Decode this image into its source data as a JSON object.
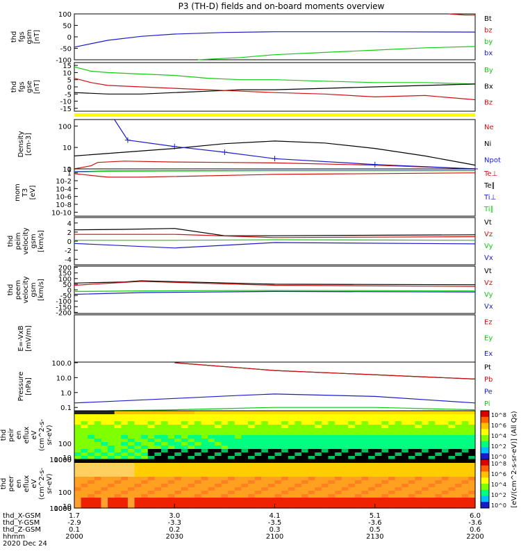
{
  "title": "P3 (TH-D) fields and on-board moments overview",
  "colors": {
    "black": "#000000",
    "red": "#cc1111",
    "green": "#11cc11",
    "blue": "#1a1acc",
    "yellow": "#ffff00"
  },
  "chart_data": [
    {
      "id": "fgs_gsm",
      "type": "line",
      "ylabel": [
        "thd",
        "fgs",
        "gsm",
        "[nT]"
      ],
      "ylim": [
        -100,
        100
      ],
      "yticks": [
        "100",
        "50",
        "0",
        "-50",
        "-100"
      ],
      "legend": [
        {
          "label": "Bt",
          "color": "black"
        },
        {
          "label": "bz",
          "color": "red"
        },
        {
          "label": "by",
          "color": "green"
        },
        {
          "label": "bx",
          "color": "blue"
        }
      ],
      "series": [
        {
          "name": "bx",
          "color": "blue",
          "x": [
            2000,
            2005,
            2010,
            2020,
            2030,
            2045,
            2100,
            2130,
            2200
          ],
          "y": [
            -45,
            -30,
            -15,
            2,
            12,
            19,
            22,
            22,
            21
          ]
        },
        {
          "name": "by",
          "color": "green",
          "x": [
            2037,
            2050,
            2100,
            2115,
            2130,
            2145,
            2200
          ],
          "y": [
            -100,
            -90,
            -78,
            -68,
            -58,
            -48,
            -42
          ]
        },
        {
          "name": "bz",
          "color": "red",
          "x": [
            2152,
            2157,
            2200
          ],
          "y": [
            100,
            95,
            95
          ]
        }
      ]
    },
    {
      "id": "fgs_gse",
      "type": "line",
      "ylabel": [
        "thd",
        "fgs",
        "gse",
        "[nT]"
      ],
      "ylim": [
        -17,
        17
      ],
      "yticks": [
        "15",
        "10",
        "5",
        "0",
        "-5",
        "-10",
        "-15"
      ],
      "legend": [
        {
          "label": "By",
          "color": "green"
        },
        {
          "label": "Bx",
          "color": "black"
        },
        {
          "label": "Bz",
          "color": "red"
        }
      ],
      "series": [
        {
          "name": "By",
          "color": "green",
          "x": [
            2000,
            2005,
            2010,
            2020,
            2030,
            2040,
            2050,
            2100,
            2115,
            2130,
            2145,
            2200
          ],
          "y": [
            14,
            11,
            10,
            9,
            8,
            6,
            5,
            5,
            4,
            3,
            3,
            2
          ]
        },
        {
          "name": "Bx",
          "color": "black",
          "x": [
            2000,
            2010,
            2020,
            2030,
            2040,
            2050,
            2100,
            2115,
            2130,
            2145,
            2200
          ],
          "y": [
            -4,
            -5,
            -5,
            -4,
            -3,
            -2,
            -2,
            -1,
            0,
            1,
            2
          ]
        },
        {
          "name": "Bz",
          "color": "red",
          "x": [
            2000,
            2005,
            2010,
            2020,
            2030,
            2040,
            2050,
            2100,
            2115,
            2130,
            2145,
            2200
          ],
          "y": [
            6,
            3,
            1,
            0,
            -1,
            -2,
            -3,
            -4,
            -5,
            -7,
            -6,
            -9
          ]
        }
      ]
    },
    {
      "id": "density",
      "type": "line",
      "yscale": "log",
      "ylabel": [
        "Density",
        "[cm-3]"
      ],
      "ylim": [
        1,
        200
      ],
      "yticks": [
        "100",
        "10",
        "1"
      ],
      "legend": [
        {
          "label": "Ne",
          "color": "red"
        },
        {
          "label": "Ni",
          "color": "black"
        },
        {
          "label": "Npot",
          "color": "blue"
        }
      ],
      "series": [
        {
          "name": "Ni",
          "color": "black",
          "x": [
            2000,
            2015,
            2030,
            2045,
            2100,
            2115,
            2130,
            2145,
            2200
          ],
          "y": [
            4,
            6,
            9,
            15,
            20,
            16,
            9,
            4,
            1.5
          ]
        },
        {
          "name": "Ne",
          "color": "red",
          "x": [
            2000,
            2005,
            2007,
            2015,
            2030,
            2045,
            2100,
            2130,
            2200
          ],
          "y": [
            1,
            1.4,
            2,
            2.3,
            2.1,
            2,
            1.9,
            1.5,
            1
          ]
        },
        {
          "name": "Npot",
          "color": "blue",
          "x": [
            2012,
            2016,
            2030,
            2045,
            2100,
            2130,
            2200
          ],
          "y": [
            200,
            22,
            11,
            6,
            3,
            1.6,
            1
          ]
        }
      ]
    },
    {
      "id": "temperature",
      "type": "line",
      "yscale": "log",
      "ylabel": [
        "mom",
        "T3",
        "[eV]"
      ],
      "ylim": [
        1e-11,
        10
      ],
      "yticks": [
        "10",
        "1",
        "10-2",
        "10-4",
        "10-6",
        "10-8",
        "10-10"
      ],
      "legend": [
        {
          "label": "Te⊥",
          "color": "red"
        },
        {
          "label": "Te∥",
          "color": "black"
        },
        {
          "label": "Ti⊥",
          "color": "blue"
        },
        {
          "label": "Ti∥",
          "color": "green"
        }
      ],
      "series": [
        {
          "name": "Ti⊥",
          "color": "blue",
          "x": [
            2000,
            2010,
            2100,
            2200
          ],
          "y": [
            2,
            3,
            4,
            4
          ]
        },
        {
          "name": "Ti∥",
          "color": "green",
          "x": [
            2000,
            2010,
            2100,
            2200
          ],
          "y": [
            1.5,
            2.5,
            3.5,
            3.5
          ]
        },
        {
          "name": "Te⊥",
          "color": "red",
          "x": [
            2000,
            2010,
            2020,
            2100,
            2200
          ],
          "y": [
            0.6,
            0.08,
            0.08,
            0.4,
            1
          ]
        }
      ]
    },
    {
      "id": "peim_velocity",
      "type": "line",
      "ylabel": [
        "thd",
        "peim",
        "velocity",
        "gsm",
        "[km/s]"
      ],
      "ylim": [
        -5.2,
        5.2
      ],
      "yticks": [
        "4",
        "2",
        "0",
        "-2",
        "-4"
      ],
      "legend": [
        {
          "label": "Vt",
          "color": "black"
        },
        {
          "label": "Vz",
          "color": "red"
        },
        {
          "label": "Vy",
          "color": "green"
        },
        {
          "label": "Vx",
          "color": "blue"
        }
      ],
      "series": [
        {
          "name": "Vt",
          "color": "black",
          "x": [
            2000,
            2015,
            2030,
            2045,
            2100,
            2200
          ],
          "y": [
            2.5,
            2.6,
            2.8,
            1.2,
            1.2,
            1.4
          ]
        },
        {
          "name": "Vz",
          "color": "red",
          "x": [
            2000,
            2030,
            2100,
            2200
          ],
          "y": [
            1.5,
            1.5,
            0.8,
            1
          ]
        },
        {
          "name": "Vy",
          "color": "green",
          "x": [
            2000,
            2030,
            2100,
            2200
          ],
          "y": [
            0.2,
            0.2,
            0.3,
            0.2
          ]
        },
        {
          "name": "Vx",
          "color": "blue",
          "x": [
            2000,
            2030,
            2100,
            2200
          ],
          "y": [
            -0.5,
            -1.5,
            -0.3,
            -0.6
          ]
        }
      ]
    },
    {
      "id": "peem_velocity",
      "type": "line",
      "ylabel": [
        "thd",
        "peem",
        "velocity",
        "gsm",
        "[km/s]"
      ],
      "ylim": [
        -210,
        210
      ],
      "yticks": [
        "200",
        "150",
        "100",
        "50",
        "0",
        "-50",
        "-100",
        "-150",
        "-200"
      ],
      "legend": [
        {
          "label": "Vt",
          "color": "black"
        },
        {
          "label": "Vz",
          "color": "red"
        },
        {
          "label": "Vy",
          "color": "green"
        },
        {
          "label": "Vx",
          "color": "blue"
        }
      ],
      "series": [
        {
          "name": "Vt",
          "color": "black",
          "x": [
            2000,
            2015,
            2020,
            2100,
            2200
          ],
          "y": [
            60,
            70,
            80,
            50,
            45
          ]
        },
        {
          "name": "Vz",
          "color": "red",
          "x": [
            2000,
            2020,
            2100,
            2200
          ],
          "y": [
            40,
            75,
            40,
            30
          ]
        },
        {
          "name": "Vy",
          "color": "green",
          "x": [
            2000,
            2020,
            2100,
            2200
          ],
          "y": [
            -15,
            -10,
            -5,
            -10
          ]
        },
        {
          "name": "Vx",
          "color": "blue",
          "x": [
            2000,
            2020,
            2100,
            2200
          ],
          "y": [
            -40,
            -25,
            -15,
            -20
          ]
        }
      ]
    },
    {
      "id": "efield",
      "type": "line",
      "ylabel": [
        "E=-VxB",
        "[mV/m]"
      ],
      "ylim": [
        0,
        1
      ],
      "yticks": [],
      "legend": [
        {
          "label": "Ez",
          "color": "red"
        },
        {
          "label": "Ey",
          "color": "green"
        },
        {
          "label": "Ex",
          "color": "blue"
        }
      ],
      "series": []
    },
    {
      "id": "pressure",
      "type": "line",
      "yscale": "log",
      "ylabel": [
        "Pressure",
        "[nPa]"
      ],
      "ylim": [
        0.06,
        110
      ],
      "yticks": [
        "100.0",
        "10.0",
        "1.0",
        "0.1"
      ],
      "legend": [
        {
          "label": "Pt",
          "color": "black"
        },
        {
          "label": "Pb",
          "color": "red"
        },
        {
          "label": "Pe",
          "color": "blue"
        },
        {
          "label": "Pi",
          "color": "green"
        }
      ],
      "series": [
        {
          "name": "Pt",
          "color": "black",
          "x": [
            2030,
            2100,
            2200
          ],
          "y": [
            100,
            30,
            8
          ]
        },
        {
          "name": "Pb",
          "color": "red",
          "x": [
            2030,
            2100,
            2200
          ],
          "y": [
            100,
            30,
            8
          ]
        },
        {
          "name": "Pe",
          "color": "blue",
          "x": [
            2000,
            2010,
            2030,
            2050,
            2100,
            2130,
            2200
          ],
          "y": [
            0.2,
            0.25,
            0.4,
            0.65,
            0.8,
            0.55,
            0.2
          ]
        },
        {
          "name": "Pi",
          "color": "green",
          "x": [
            2010,
            2030,
            2100,
            2130,
            2200
          ],
          "y": [
            0.05,
            0.07,
            0.1,
            0.1,
            0.07
          ]
        }
      ]
    },
    {
      "id": "peir_eflux",
      "type": "heatmap",
      "yscale": "log",
      "ylabel": [
        "thd",
        "peir",
        "en",
        "eflux",
        "eV",
        "(cm^2-s-",
        "sr-eV)"
      ],
      "ylim": [
        7,
        25000
      ],
      "yticks": [
        "10000",
        "1000",
        "100",
        "10"
      ]
    },
    {
      "id": "peer_eflux",
      "type": "heatmap",
      "yscale": "log",
      "ylabel": [
        "thd",
        "peer",
        "en",
        "eflux",
        "eV",
        "(cm^2-s-",
        "sr-eV)"
      ],
      "ylim": [
        7,
        25000
      ],
      "yticks": [
        "10000",
        "1000",
        "100",
        "10"
      ]
    }
  ],
  "colorbar": {
    "label": "[eV/(cm^2-s-sr-eV)] (All Qs)",
    "ticks_peir": [
      "10^8",
      "10^6",
      "10^4",
      "10^2",
      "10^0"
    ],
    "ticks_peer": [
      "10^8",
      "10^6",
      "10^4",
      "10^2",
      "10^0"
    ]
  },
  "x_axis": {
    "range": [
      2000,
      2200
    ],
    "row_labels": [
      "thd_X-GSM",
      "thd_Y-GSM",
      "thd_Z-GSM",
      "hhmm",
      "2020 Dec 24"
    ],
    "ticks": [
      {
        "x": 2000,
        "vals": [
          "1.7",
          "-2.9",
          "0.1",
          "2000"
        ]
      },
      {
        "x": 2030,
        "vals": [
          "3.0",
          "-3.3",
          "0.2",
          "2030"
        ]
      },
      {
        "x": 2100,
        "vals": [
          "4.1",
          "-3.5",
          "0.3",
          "2100"
        ]
      },
      {
        "x": 2130,
        "vals": [
          "5.1",
          "-3.6",
          "0.5",
          "2130"
        ]
      },
      {
        "x": 2200,
        "vals": [
          "6.0",
          "-3.6",
          "0.6",
          "2200"
        ]
      }
    ]
  }
}
